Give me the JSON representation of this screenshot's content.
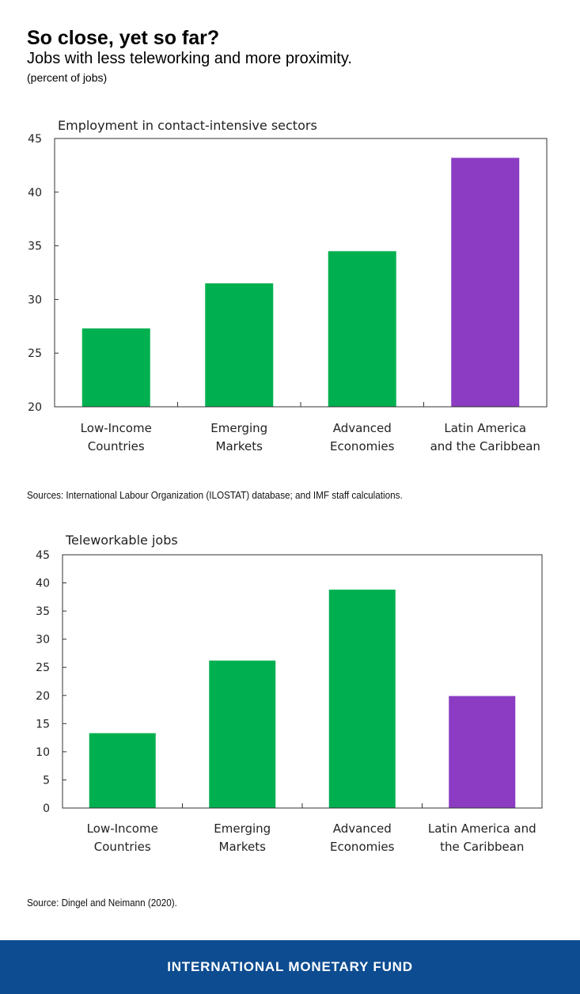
{
  "header": {
    "title": "So close, yet so far?",
    "subtitle": "Jobs with less teleworking and more proximity.",
    "unit": "(percent of jobs)"
  },
  "colors": {
    "bar": "#00b050",
    "highlight": "#8b3cc2",
    "footer": "#0d4c91"
  },
  "chart_data": [
    {
      "type": "bar",
      "title": "Employment in contact-intensive sectors",
      "categories": [
        [
          "Low-Income",
          "Countries"
        ],
        [
          "Emerging",
          "Markets"
        ],
        [
          "Advanced",
          "Economies"
        ],
        [
          "Latin America",
          "and the Caribbean"
        ]
      ],
      "values": [
        27.3,
        31.5,
        34.5,
        43.2
      ],
      "highlight_index": 3,
      "ylim": [
        20,
        45
      ],
      "yticks": [
        20,
        25,
        30,
        35,
        40,
        45
      ],
      "xlabel": "",
      "ylabel": "",
      "grid": false
    },
    {
      "type": "bar",
      "title": "Teleworkable jobs",
      "categories": [
        [
          "Low-Income",
          "Countries"
        ],
        [
          "Emerging",
          "Markets"
        ],
        [
          "Advanced",
          "Economies"
        ],
        [
          "Latin America and",
          "the Caribbean"
        ]
      ],
      "values": [
        13.3,
        26.2,
        38.8,
        19.9
      ],
      "highlight_index": 3,
      "ylim": [
        0,
        45
      ],
      "yticks": [
        0,
        5,
        10,
        15,
        20,
        25,
        30,
        35,
        40,
        45
      ],
      "xlabel": "",
      "ylabel": "",
      "grid": false
    }
  ],
  "sources": {
    "chart1": "Sources: International Labour Organization (ILOSTAT) database; and IMF staff calculations.",
    "chart2": "Source: Dingel and Neimann (2020)."
  },
  "footer": {
    "label": "INTERNATIONAL MONETARY FUND"
  }
}
